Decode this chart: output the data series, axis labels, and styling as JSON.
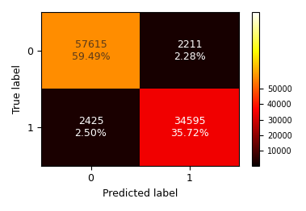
{
  "matrix": [
    [
      57615,
      2211
    ],
    [
      2425,
      34595
    ]
  ],
  "percentages": [
    [
      "59.49%",
      "2.28%"
    ],
    [
      "2.50%",
      "35.72%"
    ]
  ],
  "x_labels": [
    "0",
    "1"
  ],
  "y_labels": [
    "0",
    "1"
  ],
  "xlabel": "Predicted label",
  "ylabel": "True label",
  "cmap": "hot",
  "vmin": 0,
  "vmax": 100000,
  "colorbar_ticks": [
    10000,
    20000,
    30000,
    40000,
    50000
  ],
  "cell_text_fontsize": 9,
  "text_colors": [
    [
      "#5a3a1a",
      "#ffffff"
    ],
    [
      "#ffffff",
      "#ffffff"
    ]
  ],
  "figsize": [
    3.79,
    2.62
  ],
  "dpi": 100
}
